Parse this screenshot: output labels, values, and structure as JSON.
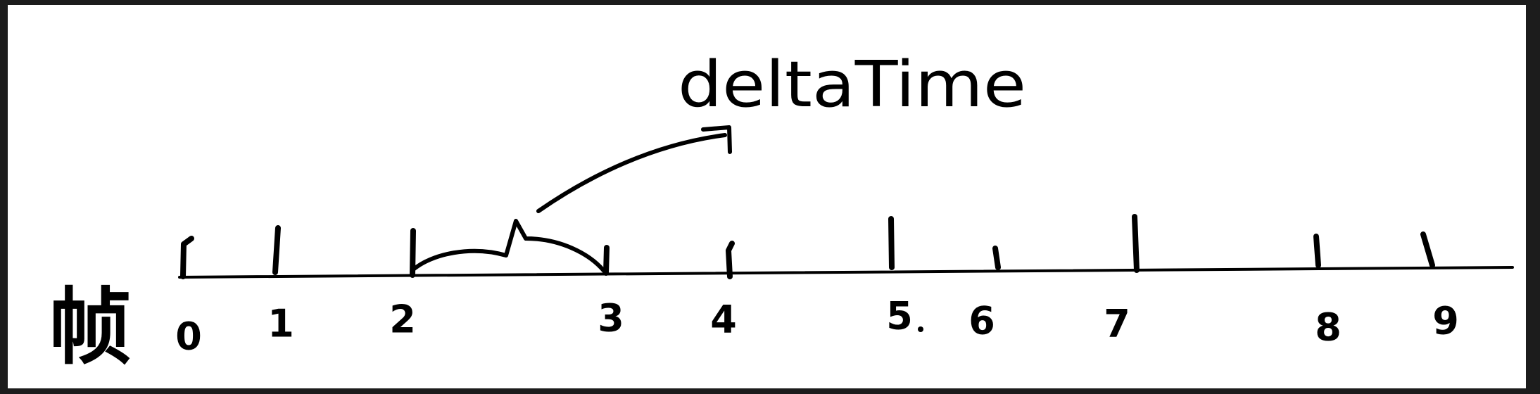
{
  "diagram": {
    "axis_label": "帧",
    "ticks": [
      {
        "label": "0"
      },
      {
        "label": "1"
      },
      {
        "label": "2"
      },
      {
        "label": "3"
      },
      {
        "label": "4"
      },
      {
        "label": "5"
      },
      {
        "label": "6"
      },
      {
        "label": "7"
      },
      {
        "label": "8"
      },
      {
        "label": "9"
      }
    ],
    "annotation": {
      "text": "deltaTime"
    }
  }
}
